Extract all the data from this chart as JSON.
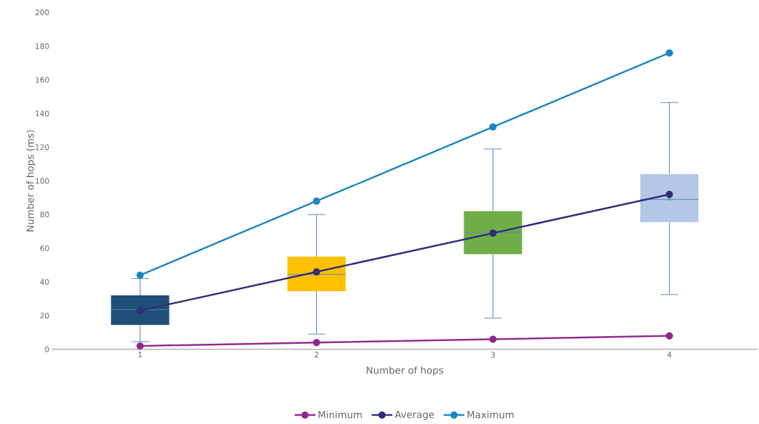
{
  "chart_data": {
    "type": "box",
    "xlabel": "Number of hops",
    "ylabel": "Number of hops (ms)",
    "categories": [
      "1",
      "2",
      "3",
      "4"
    ],
    "boxes": [
      {
        "low": 4.5,
        "q1": 14.5,
        "median": 23.5,
        "q3": 32,
        "high": 42
      },
      {
        "low": 9,
        "q1": 34.5,
        "median": 44.5,
        "q3": 55,
        "high": 80,
        "mean": 45
      },
      {
        "low": 18.5,
        "q1": 56.5,
        "median": 69.5,
        "q3": 82,
        "high": 119
      },
      {
        "low": 32.5,
        "q1": 75.5,
        "median": 89,
        "q3": 104,
        "high": 146.5,
        "mean": 89.5
      }
    ],
    "colors": [
      "#1f4e79",
      "#ffc000",
      "#70ad47",
      "#b4c7e7"
    ],
    "series": [
      {
        "name": "Minimum",
        "type": "line",
        "color": "#92278f",
        "values": [
          2,
          4,
          6,
          8
        ]
      },
      {
        "name": "Average",
        "type": "line",
        "color": "#312e7a",
        "values": [
          23,
          46,
          69,
          92
        ]
      },
      {
        "name": "Maximum",
        "type": "line",
        "color": "#1a85c3",
        "values": [
          44,
          88,
          132,
          176
        ]
      }
    ],
    "ylim": [
      0,
      200
    ],
    "yticks": [
      0,
      20,
      40,
      60,
      80,
      100,
      120,
      140,
      160,
      180,
      200
    ],
    "grid": false,
    "legend": "bottom",
    "marker": "circle",
    "line_style": "solid"
  }
}
